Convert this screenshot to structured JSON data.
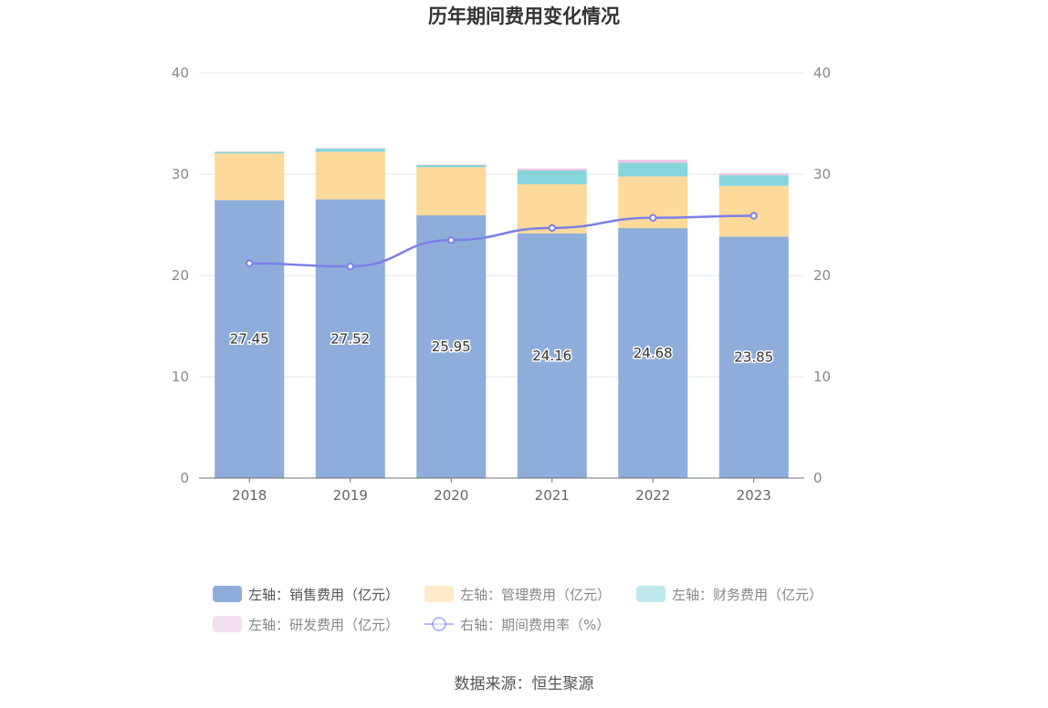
{
  "chart_data": {
    "type": "bar",
    "title": "历年期间费用变化情况",
    "categories": [
      "2018",
      "2019",
      "2020",
      "2021",
      "2022",
      "2023"
    ],
    "stacked": true,
    "left_axis": {
      "ylim": [
        0,
        40
      ],
      "ticks": [
        0,
        10,
        20,
        30,
        40
      ]
    },
    "right_axis": {
      "ylim": [
        0,
        40
      ],
      "ticks": [
        0,
        10,
        20,
        30,
        40
      ]
    },
    "grid": true,
    "legend_position": "bottom",
    "series": [
      {
        "name": "左轴：销售费用（亿元）",
        "type": "bar",
        "axis": "left",
        "color": "#8eadda",
        "values": [
          27.45,
          27.52,
          25.95,
          24.16,
          24.68,
          23.85
        ],
        "labels": [
          "27.45",
          "27.52",
          "25.95",
          "24.16",
          "24.68",
          "23.85"
        ]
      },
      {
        "name": "左轴：管理费用（亿元）",
        "type": "bar",
        "axis": "left",
        "color": "#fdd99a",
        "values": [
          4.6,
          4.7,
          4.75,
          4.85,
          5.1,
          5.0
        ]
      },
      {
        "name": "左轴：财务费用（亿元）",
        "type": "bar",
        "axis": "left",
        "color": "#85d5da",
        "values": [
          0.15,
          0.3,
          0.2,
          1.35,
          1.35,
          1.05
        ]
      },
      {
        "name": "左轴：研发费用（亿元）",
        "type": "bar",
        "axis": "left",
        "color": "#ecc6e3",
        "values": [
          0.05,
          0.05,
          0.05,
          0.2,
          0.3,
          0.2
        ]
      },
      {
        "name": "右轴：期间费用率（%）",
        "type": "line",
        "axis": "right",
        "color": "#7b7fe8",
        "values": [
          21.2,
          20.9,
          23.5,
          24.7,
          25.7,
          25.9
        ]
      }
    ]
  },
  "source_text": "数据来源：恒生聚源"
}
